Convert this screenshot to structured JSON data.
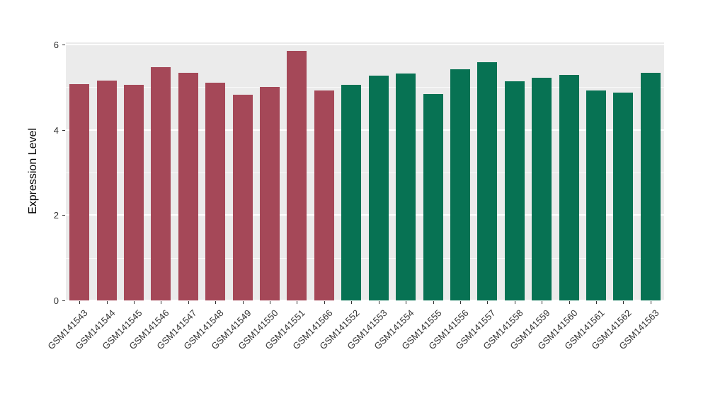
{
  "chart_data": {
    "type": "bar",
    "title": "",
    "xlabel": "",
    "ylabel": "Expression Level",
    "ylim": [
      0,
      6.05
    ],
    "yticks": [
      0,
      2,
      4,
      6
    ],
    "yticks_minor": [
      1,
      3,
      5
    ],
    "grid": true,
    "legend_position": "none",
    "panel_bg": "#EBEBEB",
    "grid_color": "#FFFFFF",
    "categories": [
      "GSM141543",
      "GSM141544",
      "GSM141545",
      "GSM141546",
      "GSM141547",
      "GSM141548",
      "GSM141549",
      "GSM141550",
      "GSM141551",
      "GSM141566",
      "GSM141552",
      "GSM141553",
      "GSM141554",
      "GSM141555",
      "GSM141556",
      "GSM141557",
      "GSM141558",
      "GSM141559",
      "GSM141560",
      "GSM141561",
      "GSM141562",
      "GSM141563"
    ],
    "values": [
      5.08,
      5.15,
      5.05,
      5.47,
      5.33,
      5.1,
      4.83,
      5.0,
      5.85,
      4.92,
      5.06,
      5.27,
      5.32,
      4.84,
      5.42,
      5.58,
      5.14,
      5.22,
      5.28,
      4.93,
      4.88,
      5.33
    ],
    "bar_colors": [
      "#A54858",
      "#A54858",
      "#A54858",
      "#A54858",
      "#A54858",
      "#A54858",
      "#A54858",
      "#A54858",
      "#A54858",
      "#A54858",
      "#077253",
      "#077253",
      "#077253",
      "#077253",
      "#077253",
      "#077253",
      "#077253",
      "#077253",
      "#077253",
      "#077253",
      "#077253",
      "#077253"
    ]
  }
}
